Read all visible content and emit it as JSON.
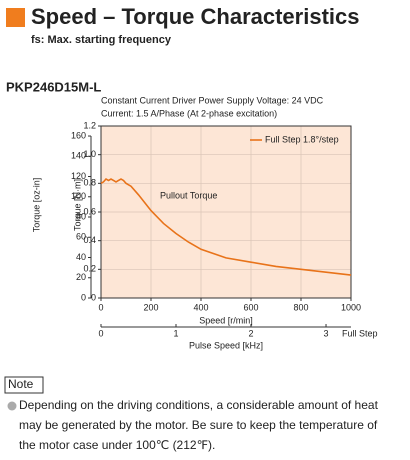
{
  "header": {
    "title": "Speed – Torque Characteristics",
    "subtitle": "fs: Max. starting frequency"
  },
  "chart_data": {
    "type": "line",
    "title": "PKP246D15M-L",
    "conditions": [
      "Constant Current Driver   Power Supply Voltage: 24 VDC",
      "Current: 1.5 A/Phase (At 2-phase excitation)"
    ],
    "x_label": "Speed [r/min]",
    "y_label": "Torque [N·m]",
    "y2_label": "Torque [oz-in]",
    "x2_label": "Pulse Speed [kHz]",
    "x2_unit_label": "Full Step",
    "annotation": "Pullout Torque",
    "x": [
      0,
      10,
      20,
      30,
      40,
      50,
      60,
      70,
      80,
      90,
      100,
      120,
      150,
      200,
      250,
      300,
      350,
      400,
      500,
      600,
      700,
      800,
      900,
      1000
    ],
    "series": [
      {
        "name": "Full Step 1.8°/step",
        "color": "#e8731a",
        "values": [
          0.8,
          0.81,
          0.83,
          0.82,
          0.83,
          0.82,
          0.81,
          0.82,
          0.83,
          0.82,
          0.8,
          0.78,
          0.72,
          0.61,
          0.52,
          0.45,
          0.39,
          0.34,
          0.28,
          0.25,
          0.22,
          0.2,
          0.18,
          0.16
        ]
      }
    ],
    "xlim": [
      0,
      1000
    ],
    "xticks": [
      0,
      200,
      400,
      600,
      800,
      1000
    ],
    "ylim": [
      0,
      1.2
    ],
    "yticks": [
      0,
      0.2,
      0.4,
      0.6,
      0.8,
      {
        "value": 1,
        "label": "1.0"
      },
      1.2
    ],
    "y2lim": [
      0,
      169.9
    ],
    "y2ticks": [
      0,
      20,
      40,
      60,
      80,
      100,
      120,
      140,
      160
    ],
    "x2lim": [
      0,
      3.333
    ],
    "x2ticks": [
      0,
      1,
      2,
      3
    ],
    "grid": true,
    "legend": "upper right"
  },
  "note": {
    "label": "Note",
    "lines": [
      "Depending on the driving conditions, a considerable amount of heat",
      "may be generated by the motor. Be sure to keep the temperature of",
      "the motor case under 100℃ (212℉)."
    ]
  }
}
